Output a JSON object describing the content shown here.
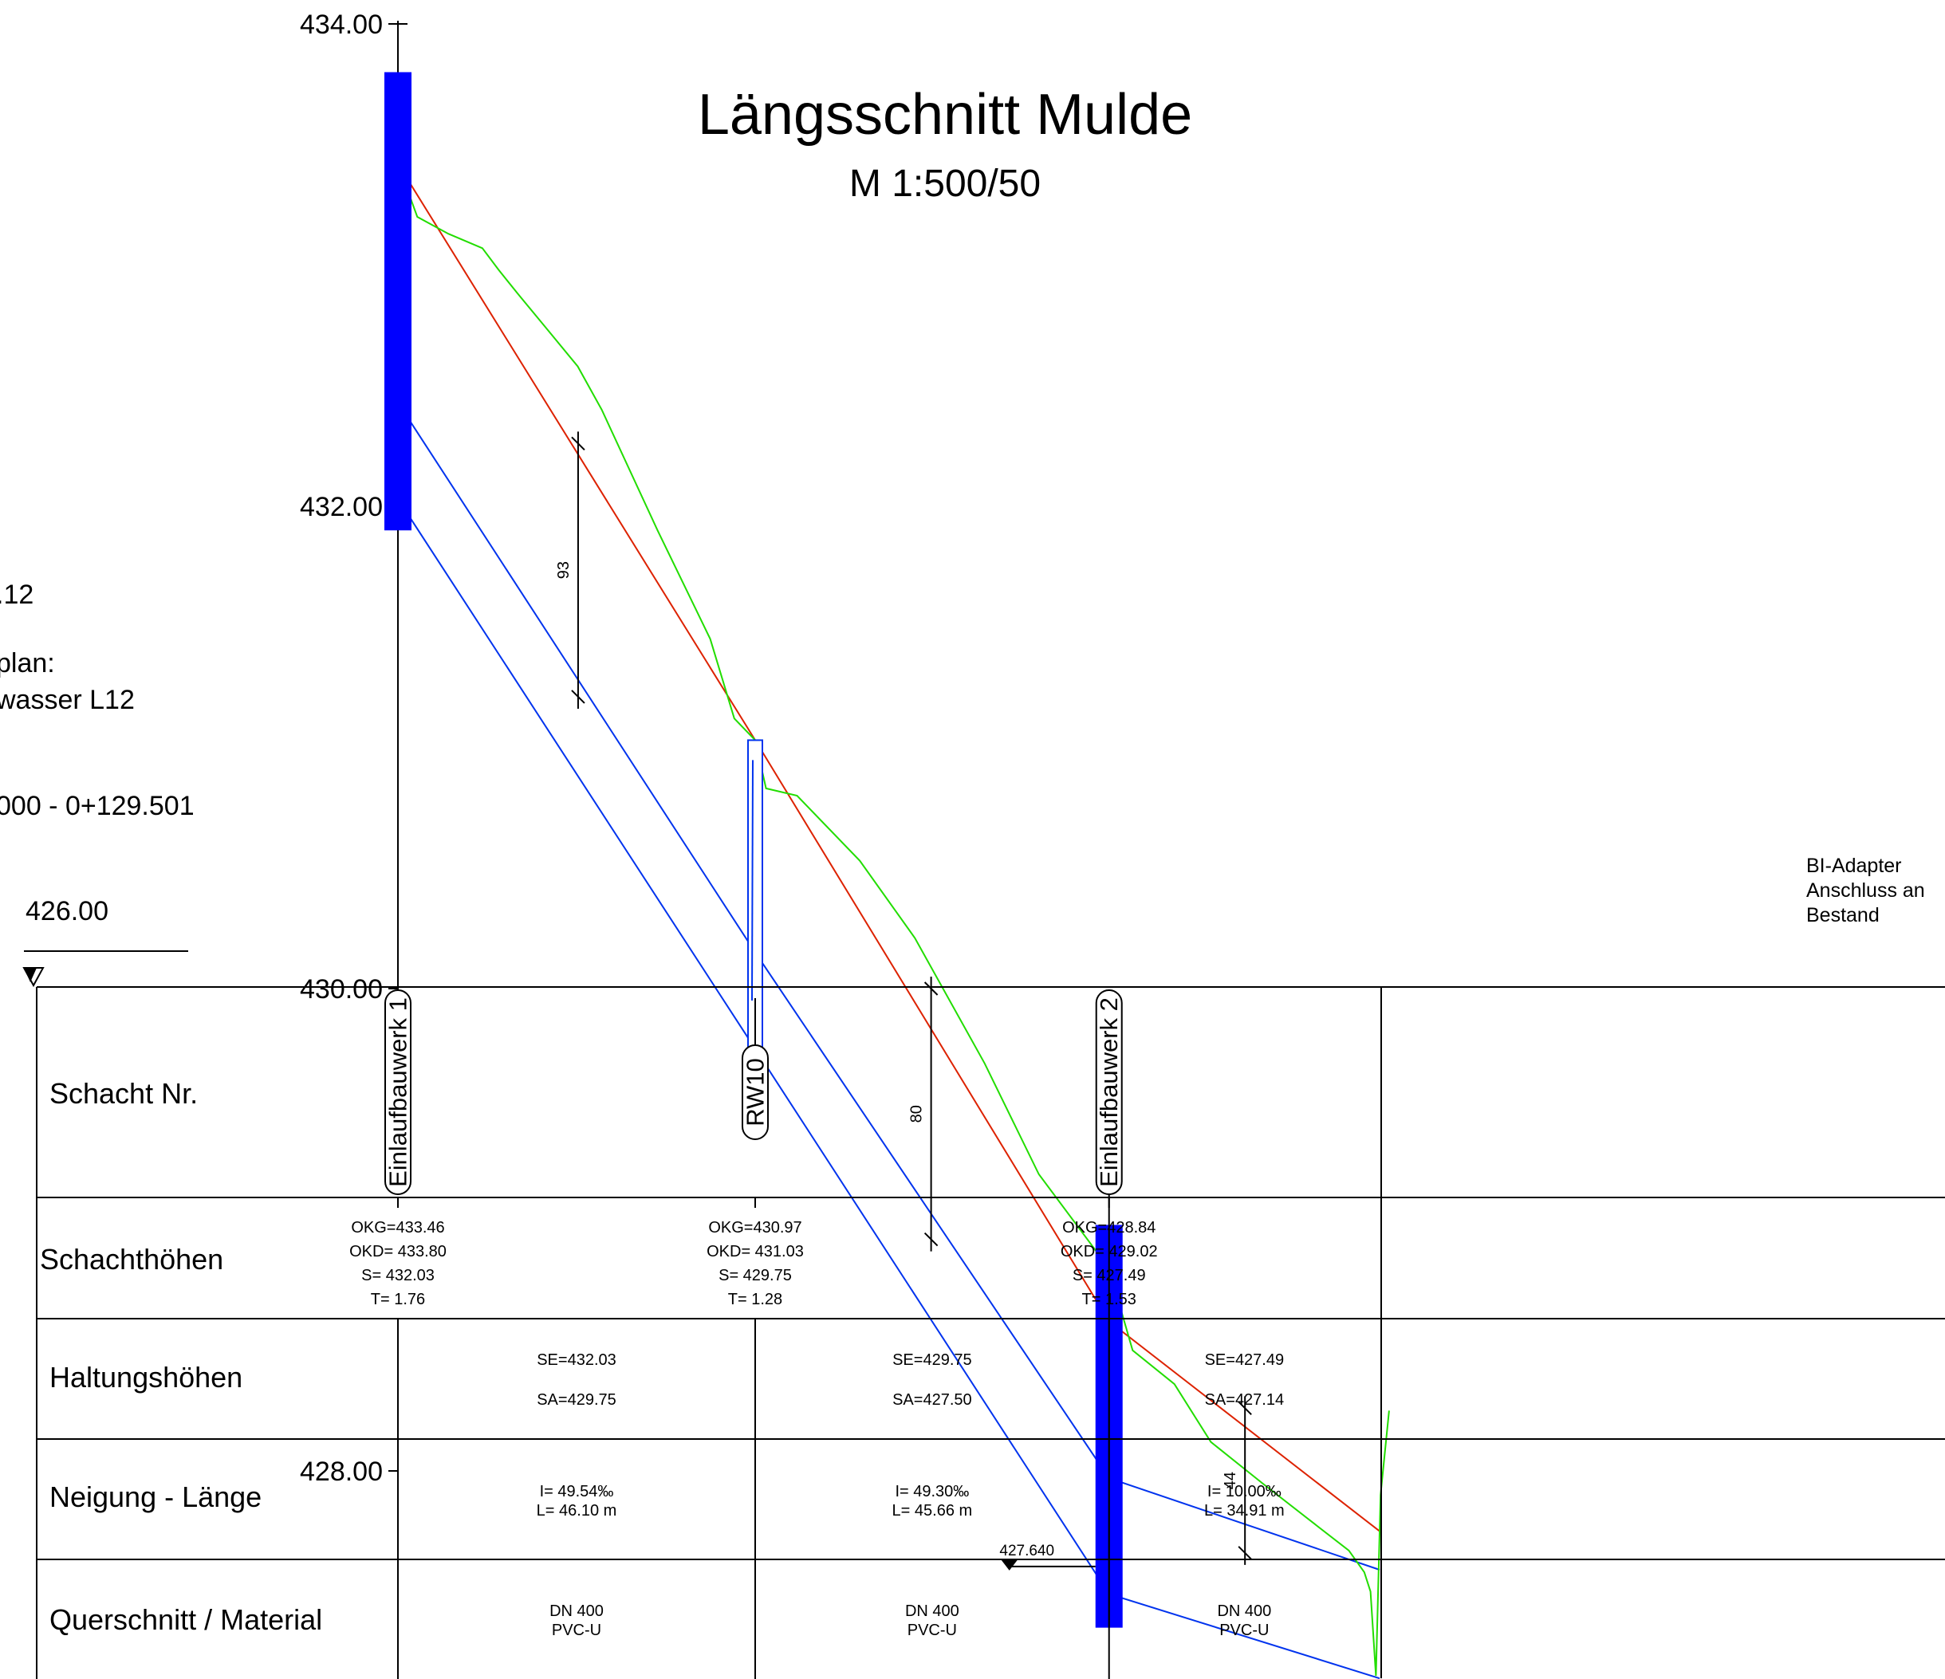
{
  "title": "Längsschnitt Mulde",
  "subtitle": "M 1:500/50",
  "left_notes": [
    ".12",
    "plan:",
    "wasser L12",
    "000 - 0+129.501"
  ],
  "ref_level": "426.00",
  "y_ticks": [
    {
      "label": "434.00",
      "value": 434
    },
    {
      "label": "432.00",
      "value": 432
    },
    {
      "label": "430.00",
      "value": 430
    },
    {
      "label": "428.00",
      "value": 428
    }
  ],
  "colors": {
    "terrain": "#22dd00",
    "design": "#dd2200",
    "pipe": "#0033ee",
    "structure_fill": "#0000ff"
  },
  "shafts": [
    {
      "name": "Einlaufbauwerk 1",
      "style": "tall",
      "chainage_m": 0.0,
      "okg": "OKG=433.46",
      "okd": "OKD= 433.80",
      "s": "S= 432.03",
      "t": "T= 1.76",
      "top": 433.8,
      "bottom": 431.9
    },
    {
      "name": "RW10",
      "style": "short",
      "chainage_m": 46.1,
      "okg": "OKG=430.97",
      "okd": "OKD= 431.03",
      "s": "S= 429.75",
      "t": "T= 1.28",
      "top": 431.03,
      "bottom": 429.62
    },
    {
      "name": "Einlaufbauwerk 2",
      "style": "tall",
      "chainage_m": 91.76,
      "okg": "OKG=428.84",
      "okd": "OKD= 429.02",
      "s": "S= 427.49",
      "t": "T= 1.53",
      "top": 429.02,
      "bottom": 427.35
    }
  ],
  "segments": [
    {
      "se": "SE=432.03",
      "sa": "SA=429.75",
      "slope": "I= 49.54‰",
      "length": "L= 46.10 m",
      "dn": "DN 400",
      "material": "PVC-U"
    },
    {
      "se": "SE=429.75",
      "sa": "SA=427.50",
      "slope": "I= 49.30‰",
      "length": "L= 45.66 m",
      "dn": "DN 400",
      "material": "PVC-U"
    },
    {
      "se": "SE=427.49",
      "sa": "SA=427.14",
      "slope": "I= 10.00‰",
      "length": "L= 34.91 m",
      "dn": "DN 400",
      "material": "PVC-U"
    }
  ],
  "end_chainage_m": 126.67,
  "design_line": [
    [
      0,
      433.42
    ],
    [
      46.1,
      431.03
    ],
    [
      91.76,
      428.62
    ],
    [
      126.67,
      427.75
    ]
  ],
  "pipe_top": [
    [
      0,
      432.43
    ],
    [
      46.1,
      430.15
    ],
    [
      91.76,
      427.97
    ],
    [
      126.67,
      427.59
    ]
  ],
  "pipe_bottom": [
    [
      0,
      432.03
    ],
    [
      46.1,
      429.75
    ],
    [
      91.76,
      427.49
    ],
    [
      126.67,
      427.14
    ]
  ],
  "terrain_line": [
    [
      0,
      433.42
    ],
    [
      2.5,
      433.2
    ],
    [
      6.5,
      433.13
    ],
    [
      10.9,
      433.07
    ],
    [
      13.0,
      432.98
    ],
    [
      15.5,
      432.88
    ],
    [
      19.1,
      432.74
    ],
    [
      23.2,
      432.58
    ],
    [
      26.3,
      432.4
    ],
    [
      33.5,
      431.9
    ],
    [
      40.3,
      431.45
    ],
    [
      43.4,
      431.12
    ],
    [
      46.1,
      431.03
    ],
    [
      47.5,
      430.83
    ],
    [
      51.5,
      430.8
    ],
    [
      59.6,
      430.53
    ],
    [
      66.7,
      430.21
    ],
    [
      75.7,
      429.69
    ],
    [
      82.7,
      429.23
    ],
    [
      91.76,
      428.84
    ],
    [
      94.8,
      428.5
    ],
    [
      100.2,
      428.36
    ],
    [
      104.9,
      428.12
    ],
    [
      111.5,
      427.95
    ],
    [
      118.3,
      427.78
    ],
    [
      122.7,
      427.67
    ],
    [
      124.7,
      427.58
    ],
    [
      125.5,
      427.5
    ],
    [
      126.2,
      427.15
    ],
    [
      126.8,
      427.9
    ],
    [
      127.9,
      428.25
    ]
  ],
  "dims": [
    {
      "label": "93",
      "chainage_m": 23.25,
      "top": 432.26,
      "bottom": 431.21
    },
    {
      "label": "80",
      "chainage_m": 68.8,
      "top": 430.0,
      "bottom": 428.96
    },
    {
      "label": "44",
      "chainage_m": 109.3,
      "top": 428.26,
      "bottom": 427.66
    }
  ],
  "level_marker": {
    "label": "427.640",
    "value": 427.64
  },
  "end_note": [
    "BI-Adapter",
    "Anschluss an",
    "Bestand"
  ],
  "rows": [
    {
      "label": "Schacht Nr."
    },
    {
      "label": "Schachthöhen"
    },
    {
      "label": "Haltungshöhen"
    },
    {
      "label": "Neigung - Länge"
    },
    {
      "label": "Querschnitt / Material"
    }
  ]
}
